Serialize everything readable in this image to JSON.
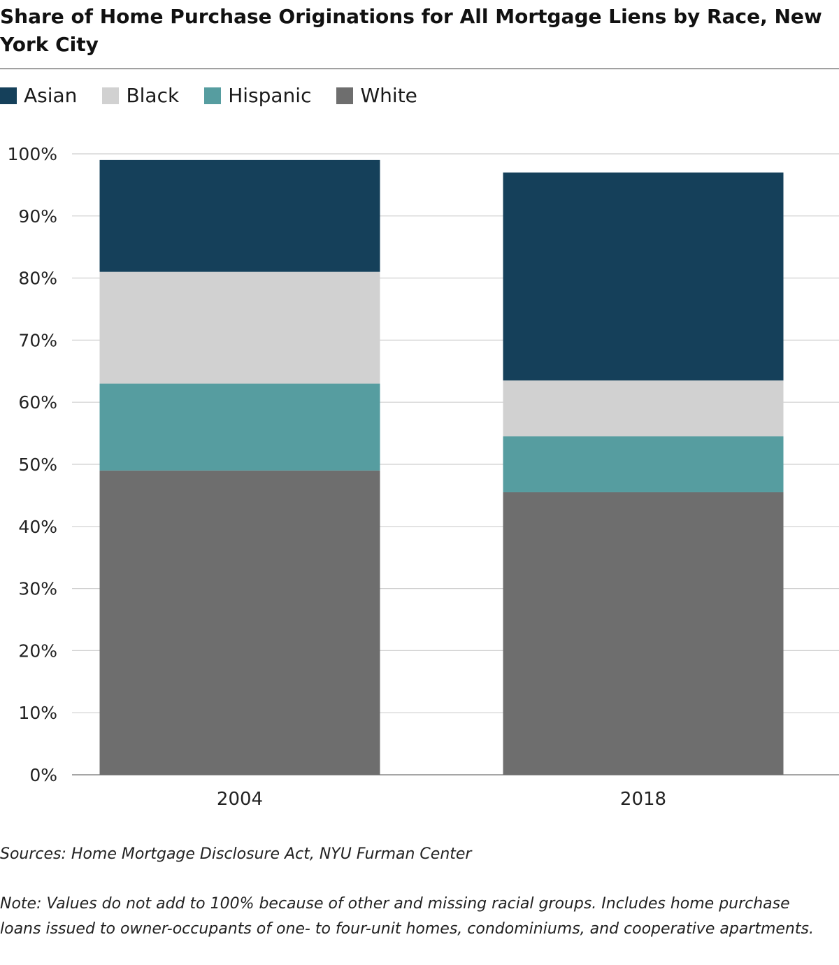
{
  "title": "Share of Home Purchase Originations for All Mortgage Liens by Race, New York City",
  "legend": [
    {
      "label": "Asian",
      "color": "#15405a"
    },
    {
      "label": "Black",
      "color": "#d1d1d1"
    },
    {
      "label": "Hispanic",
      "color": "#569da0"
    },
    {
      "label": "White",
      "color": "#6e6e6e"
    }
  ],
  "chart_data": {
    "type": "bar",
    "stacked": true,
    "categories": [
      "2004",
      "2018"
    ],
    "series": [
      {
        "name": "White",
        "color": "#6e6e6e",
        "values": [
          49,
          45.5
        ]
      },
      {
        "name": "Hispanic",
        "color": "#569da0",
        "values": [
          14,
          9
        ]
      },
      {
        "name": "Black",
        "color": "#d1d1d1",
        "values": [
          18,
          9
        ]
      },
      {
        "name": "Asian",
        "color": "#15405a",
        "values": [
          18,
          33.5
        ]
      }
    ],
    "y_ticks": [
      "0%",
      "10%",
      "20%",
      "30%",
      "40%",
      "50%",
      "60%",
      "70%",
      "80%",
      "90%",
      "100%"
    ],
    "ylim": [
      0,
      100
    ],
    "grid": true,
    "legend_position": "top-left"
  },
  "footer": {
    "source": "Sources: Home Mortgage Disclosure Act, NYU Furman Center",
    "note": "Note: Values do not add to 100% because of other and missing racial groups. Includes home purchase loans issued to owner-occupants of one- to four-unit homes, condominiums, and cooperative apartments."
  }
}
